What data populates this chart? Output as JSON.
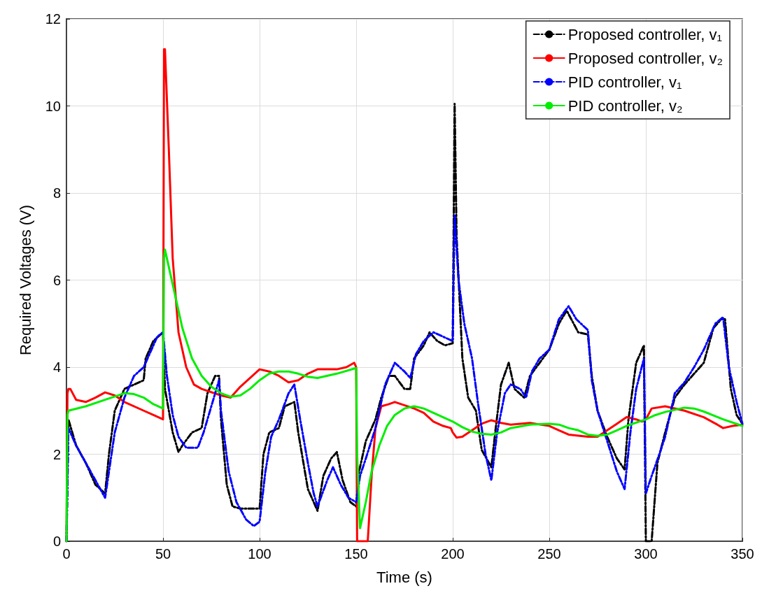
{
  "chart_data": {
    "type": "line",
    "xlabel": "Time (s)",
    "ylabel": "Required Voltages (V)",
    "xlim": [
      0,
      350
    ],
    "xticks": [
      0,
      50,
      100,
      150,
      200,
      250,
      300,
      350
    ],
    "ylim": [
      0,
      12
    ],
    "yticks": [
      0,
      2,
      4,
      6,
      8,
      10,
      12
    ],
    "grid": true,
    "legend": "top right",
    "marker": "none",
    "series": [
      {
        "name": "Proposed controller, v₁",
        "color": "#000000",
        "line_style": "dashed",
        "x": [
          0,
          1,
          5,
          10,
          15,
          20,
          22,
          25,
          30,
          35,
          40,
          41,
          45,
          50,
          51,
          55,
          58,
          60,
          65,
          70,
          73,
          77,
          79,
          80,
          83,
          86,
          90,
          95,
          100,
          102,
          105,
          110,
          113,
          118,
          120,
          125,
          130,
          133,
          137,
          140,
          143,
          147,
          150,
          151,
          155,
          160,
          163,
          167,
          170,
          175,
          178,
          180,
          185,
          188,
          192,
          196,
          200,
          201,
          202,
          205,
          208,
          212,
          215,
          220,
          222,
          225,
          229,
          232,
          237,
          240,
          245,
          250,
          255,
          259,
          262,
          265,
          270,
          272,
          275,
          280,
          285,
          289,
          291,
          295,
          299,
          300,
          303,
          306,
          310,
          315,
          320,
          325,
          330,
          335,
          339,
          341,
          344,
          347,
          350
        ],
        "values": [
          0,
          2.8,
          2.2,
          1.8,
          1.3,
          1.1,
          2,
          3,
          3.5,
          3.6,
          3.7,
          4.2,
          4.6,
          4.8,
          3.5,
          2.5,
          2.05,
          2.2,
          2.5,
          2.6,
          3.4,
          3.8,
          3.8,
          2.8,
          1.3,
          0.8,
          0.75,
          0.75,
          0.75,
          2,
          2.5,
          2.6,
          3.1,
          3.2,
          2.5,
          1.2,
          0.7,
          1.5,
          1.9,
          2.05,
          1.4,
          0.9,
          0.8,
          1.5,
          2.3,
          2.8,
          3.3,
          3.8,
          3.8,
          3.5,
          3.5,
          4.2,
          4.5,
          4.8,
          4.6,
          4.5,
          4.55,
          10.05,
          7,
          4.2,
          3.3,
          3,
          2.1,
          1.7,
          2.5,
          3.6,
          4.1,
          3.5,
          3.3,
          3.8,
          4.1,
          4.4,
          5,
          5.3,
          5.05,
          4.8,
          4.75,
          3.8,
          3,
          2.4,
          1.9,
          1.65,
          2.8,
          4.1,
          4.5,
          0,
          0,
          1.8,
          2.5,
          3.3,
          3.6,
          3.85,
          4.1,
          4.9,
          5.1,
          5.1,
          3.5,
          2.9,
          2.7
        ]
      },
      {
        "name": "Proposed controller, v₂",
        "color": "#ff0000",
        "line_style": "solid",
        "x": [
          0,
          0.5,
          1,
          2,
          5,
          10,
          15,
          20,
          25,
          30,
          40,
          45,
          50,
          50.5,
          51,
          53,
          55,
          58,
          62,
          66,
          70,
          80,
          85,
          90,
          95,
          100,
          105,
          110,
          115,
          120,
          125,
          130,
          140,
          145,
          149,
          150,
          150.5,
          156,
          158,
          160,
          163,
          167,
          170,
          180,
          185,
          190,
          195,
          199,
          200,
          202,
          205,
          210,
          215,
          220,
          225,
          230,
          240,
          250,
          255,
          260,
          270,
          275,
          280,
          285,
          290,
          295,
          298,
          300,
          303,
          310,
          320,
          330,
          337,
          340,
          345,
          350
        ],
        "values": [
          0,
          3.4,
          3.5,
          3.5,
          3.25,
          3.2,
          3.3,
          3.42,
          3.35,
          3.2,
          3,
          2.9,
          2.8,
          11.3,
          11.3,
          9,
          6.5,
          4.8,
          4,
          3.6,
          3.5,
          3.35,
          3.3,
          3.55,
          3.75,
          3.95,
          3.9,
          3.8,
          3.65,
          3.7,
          3.85,
          3.95,
          3.95,
          4,
          4.1,
          4,
          0,
          0,
          1.5,
          2.6,
          3.1,
          3.15,
          3.2,
          3.05,
          2.95,
          2.75,
          2.65,
          2.6,
          2.5,
          2.38,
          2.4,
          2.55,
          2.7,
          2.78,
          2.72,
          2.68,
          2.72,
          2.65,
          2.55,
          2.45,
          2.4,
          2.4,
          2.55,
          2.7,
          2.85,
          2.8,
          2.75,
          2.8,
          3.05,
          3.1,
          3,
          2.85,
          2.68,
          2.6,
          2.65,
          2.68
        ]
      },
      {
        "name": "PID controller, v₁",
        "color": "#0000ff",
        "line_style": "dashed",
        "x": [
          0,
          1,
          5,
          10,
          15,
          20,
          22,
          25,
          30,
          35,
          40,
          43,
          47,
          50,
          52,
          55,
          58,
          62,
          68,
          71,
          75,
          79,
          80,
          84,
          88,
          93,
          97,
          100,
          103,
          106,
          110,
          115,
          118,
          121,
          125,
          128,
          130,
          135,
          138,
          142,
          146,
          150,
          152,
          155,
          160,
          165,
          170,
          175,
          178,
          181,
          185,
          190,
          195,
          200,
          201,
          203,
          206,
          210,
          213,
          217,
          220,
          223,
          227,
          230,
          235,
          238,
          241,
          245,
          250,
          255,
          260,
          264,
          270,
          272,
          275,
          280,
          285,
          289,
          292,
          295,
          299,
          300,
          303,
          307,
          310,
          315,
          320,
          325,
          330,
          336,
          340,
          343,
          347,
          350
        ],
        "values": [
          0,
          2.6,
          2.2,
          1.8,
          1.4,
          1,
          1.6,
          2.5,
          3.3,
          3.8,
          4,
          4.3,
          4.7,
          4.8,
          3.8,
          2.9,
          2.4,
          2.15,
          2.15,
          2.5,
          3.1,
          3.7,
          3,
          1.6,
          0.9,
          0.5,
          0.35,
          0.45,
          1.6,
          2.4,
          2.8,
          3.4,
          3.6,
          2.8,
          1.8,
          1.1,
          0.8,
          1.4,
          1.7,
          1.3,
          1,
          0.9,
          1.5,
          1.9,
          2.6,
          3.6,
          4.1,
          3.9,
          3.75,
          4.3,
          4.6,
          4.8,
          4.7,
          4.6,
          7.5,
          6,
          5,
          4.2,
          3.2,
          2,
          1.4,
          2.5,
          3.4,
          3.6,
          3.5,
          3.3,
          3.9,
          4.2,
          4.4,
          5.1,
          5.4,
          5.1,
          4.85,
          3.7,
          3,
          2.3,
          1.6,
          1.2,
          2.5,
          3.5,
          4.2,
          1.1,
          1.5,
          2,
          2.4,
          3.4,
          3.65,
          4,
          4.4,
          5,
          5.15,
          4,
          3.2,
          2.7
        ]
      },
      {
        "name": "PID controller, v₂",
        "color": "#00ee00",
        "line_style": "solid",
        "x": [
          0,
          0.5,
          1,
          10,
          20,
          30,
          35,
          40,
          45,
          50,
          50.5,
          51,
          55,
          60,
          65,
          70,
          75,
          80,
          85,
          90,
          95,
          100,
          105,
          110,
          115,
          120,
          125,
          130,
          140,
          150,
          150.5,
          152,
          155,
          158,
          162,
          166,
          170,
          175,
          180,
          185,
          190,
          195,
          200,
          205,
          210,
          215,
          220,
          225,
          230,
          240,
          250,
          255,
          260,
          265,
          270,
          275,
          280,
          285,
          290,
          300,
          305,
          310,
          320,
          325,
          330,
          340,
          350
        ],
        "values": [
          0,
          2.9,
          3,
          3.1,
          3.25,
          3.4,
          3.38,
          3.3,
          3.15,
          3.05,
          6.5,
          6.7,
          5.9,
          4.9,
          4.2,
          3.8,
          3.55,
          3.4,
          3.32,
          3.35,
          3.5,
          3.7,
          3.85,
          3.9,
          3.9,
          3.85,
          3.78,
          3.75,
          3.85,
          3.98,
          2,
          0.3,
          0.9,
          1.6,
          2.2,
          2.65,
          2.9,
          3.05,
          3.1,
          3.05,
          2.95,
          2.85,
          2.75,
          2.62,
          2.52,
          2.47,
          2.45,
          2.5,
          2.6,
          2.68,
          2.7,
          2.68,
          2.6,
          2.55,
          2.45,
          2.42,
          2.45,
          2.55,
          2.65,
          2.8,
          2.9,
          2.97,
          3.07,
          3.05,
          2.98,
          2.8,
          2.65
        ]
      }
    ]
  }
}
